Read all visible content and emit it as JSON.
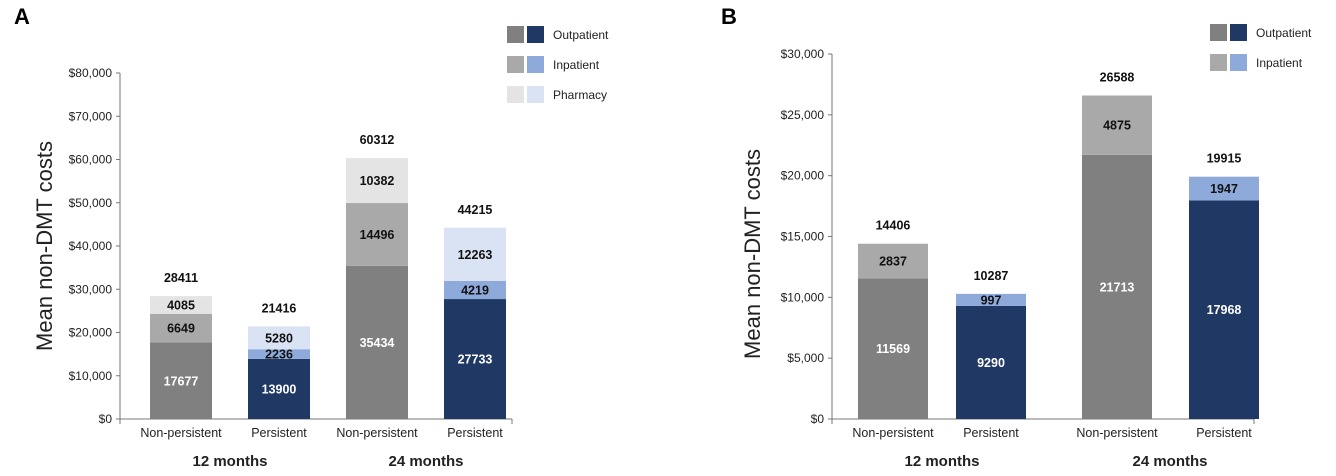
{
  "chart_data": [
    {
      "panel": "A",
      "type": "bar",
      "stacked": true,
      "ylabel": "Mean non-DMT costs",
      "ylim": [
        0,
        80000
      ],
      "yticks": [
        "$0",
        "$10,000",
        "$20,000",
        "$30,000",
        "$40,000",
        "$50,000",
        "$60,000",
        "$70,000",
        "$80,000"
      ],
      "categories": [
        "Non-persistent",
        "Persistent",
        "Non-persistent",
        "Persistent"
      ],
      "groups": [
        {
          "label": "12 months",
          "bars": [
            0,
            1
          ]
        },
        {
          "label": "24 months",
          "bars": [
            2,
            3
          ]
        }
      ],
      "series": [
        {
          "name": "Outpatient",
          "values": [
            17677,
            13900,
            35434,
            27733
          ],
          "colors": [
            "#808080",
            "#1f3864",
            "#808080",
            "#1f3864"
          ],
          "labelColor": "#ffffff"
        },
        {
          "name": "Inpatient",
          "values": [
            6649,
            2236,
            14496,
            4219
          ],
          "colors": [
            "#a9a9a9",
            "#8eaadb",
            "#a9a9a9",
            "#8eaadb"
          ],
          "labelColor": "#111111"
        },
        {
          "name": "Pharmacy",
          "values": [
            4085,
            5280,
            10382,
            12263
          ],
          "colors": [
            "#e4e4e4",
            "#dae3f3",
            "#e4e4e4",
            "#dae3f3"
          ],
          "labelColor": "#111111"
        }
      ],
      "totals": [
        28411,
        21416,
        60312,
        44215
      ],
      "legend": [
        {
          "name": "Outpatient",
          "swatches": [
            "#808080",
            "#1f3864"
          ]
        },
        {
          "name": "Inpatient",
          "swatches": [
            "#a9a9a9",
            "#8eaadb"
          ]
        },
        {
          "name": "Pharmacy",
          "swatches": [
            "#e4e4e4",
            "#dae3f3"
          ]
        }
      ]
    },
    {
      "panel": "B",
      "type": "bar",
      "stacked": true,
      "ylabel": "Mean non-DMT costs",
      "ylim": [
        0,
        30000
      ],
      "yticks": [
        "$0",
        "$5,000",
        "$10,000",
        "$15,000",
        "$20,000",
        "$25,000",
        "$30,000"
      ],
      "categories": [
        "Non-persistent",
        "Persistent",
        "Non-persistent",
        "Persistent"
      ],
      "groups": [
        {
          "label": "12 months",
          "bars": [
            0,
            1
          ]
        },
        {
          "label": "24 months",
          "bars": [
            2,
            3
          ]
        }
      ],
      "series": [
        {
          "name": "Outpatient",
          "values": [
            11569,
            9290,
            21713,
            17968
          ],
          "colors": [
            "#808080",
            "#1f3864",
            "#808080",
            "#1f3864"
          ],
          "labelColor": "#ffffff"
        },
        {
          "name": "Inpatient",
          "values": [
            2837,
            997,
            4875,
            1947
          ],
          "colors": [
            "#a9a9a9",
            "#8eaadb",
            "#a9a9a9",
            "#8eaadb"
          ],
          "labelColor": "#111111"
        }
      ],
      "totals": [
        14406,
        10287,
        26588,
        19915
      ],
      "legend": [
        {
          "name": "Outpatient",
          "swatches": [
            "#808080",
            "#1f3864"
          ]
        },
        {
          "name": "Inpatient",
          "swatches": [
            "#a9a9a9",
            "#8eaadb"
          ]
        }
      ]
    }
  ]
}
